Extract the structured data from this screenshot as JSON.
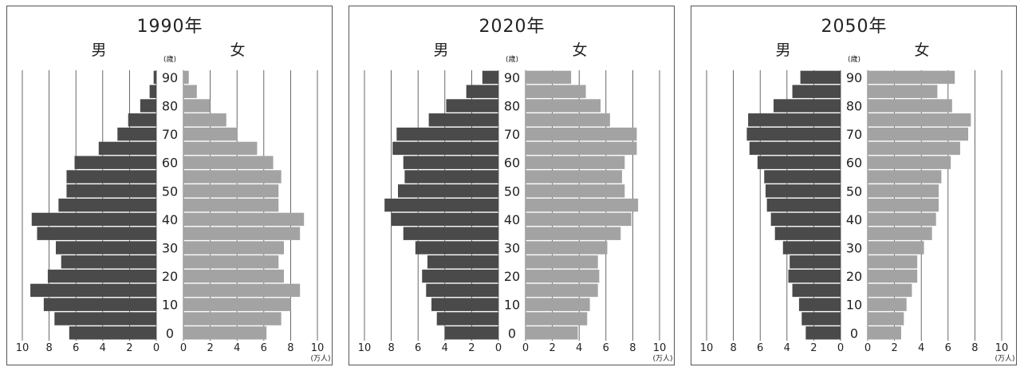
{
  "units": {
    "age": "(歳)",
    "population": "(万人)"
  },
  "labels": {
    "male": "男",
    "female": "女"
  },
  "age_ticks": [
    "90",
    "80",
    "70",
    "60",
    "50",
    "40",
    "30",
    "20",
    "10",
    "0"
  ],
  "x_ticks": [
    "10",
    "8",
    "6",
    "4",
    "2",
    "0",
    "0",
    "2",
    "4",
    "6",
    "8",
    "10"
  ],
  "colors": {
    "male": "#4a4a4a",
    "female": "#a3a3a3",
    "grid": "#444444"
  },
  "chart_data": [
    {
      "type": "bar",
      "title": "1990年",
      "xlabel": "(万人)",
      "ylabel": "(歳)",
      "xlim": [
        0,
        10
      ],
      "categories": [
        "0-4",
        "5-9",
        "10-14",
        "15-19",
        "20-24",
        "25-29",
        "30-34",
        "35-39",
        "40-44",
        "45-49",
        "50-54",
        "55-59",
        "60-64",
        "65-69",
        "70-74",
        "75-79",
        "80-84",
        "85-89",
        "90+"
      ],
      "series": [
        {
          "name": "男",
          "values": [
            6.5,
            7.6,
            8.4,
            9.4,
            8.1,
            7.1,
            7.5,
            8.9,
            9.3,
            7.3,
            6.7,
            6.7,
            6.1,
            4.3,
            2.9,
            2.1,
            1.2,
            0.5,
            0.2
          ]
        },
        {
          "name": "女",
          "values": [
            6.2,
            7.3,
            8.0,
            8.7,
            7.5,
            7.1,
            7.5,
            8.7,
            9.0,
            7.1,
            7.1,
            7.3,
            6.7,
            5.5,
            4.0,
            3.2,
            2.0,
            1.0,
            0.4
          ]
        }
      ]
    },
    {
      "type": "bar",
      "title": "2020年",
      "xlabel": "(万人)",
      "ylabel": "(歳)",
      "xlim": [
        0,
        10
      ],
      "categories": [
        "0-4",
        "5-9",
        "10-14",
        "15-19",
        "20-24",
        "25-29",
        "30-34",
        "35-39",
        "40-44",
        "45-49",
        "50-54",
        "55-59",
        "60-64",
        "65-69",
        "70-74",
        "75-79",
        "80-84",
        "85-89",
        "90+"
      ],
      "series": [
        {
          "name": "男",
          "values": [
            4.0,
            4.6,
            5.0,
            5.4,
            5.7,
            5.3,
            6.2,
            7.1,
            8.0,
            8.5,
            7.5,
            7.0,
            7.1,
            7.9,
            7.6,
            5.2,
            3.9,
            2.4,
            1.2
          ]
        },
        {
          "name": "女",
          "values": [
            3.9,
            4.6,
            4.8,
            5.4,
            5.5,
            5.4,
            6.1,
            7.1,
            7.9,
            8.4,
            7.4,
            7.2,
            7.4,
            8.3,
            8.3,
            6.3,
            5.6,
            4.5,
            3.4
          ]
        }
      ]
    },
    {
      "type": "bar",
      "title": "2050年",
      "xlabel": "(万人)",
      "ylabel": "(歳)",
      "xlim": [
        0,
        10
      ],
      "categories": [
        "0-4",
        "5-9",
        "10-14",
        "15-19",
        "20-24",
        "25-29",
        "30-34",
        "35-39",
        "40-44",
        "45-49",
        "50-54",
        "55-59",
        "60-64",
        "65-69",
        "70-74",
        "75-79",
        "80-84",
        "85-89",
        "90+"
      ],
      "series": [
        {
          "name": "男",
          "values": [
            2.6,
            2.9,
            3.1,
            3.6,
            3.9,
            3.8,
            4.3,
            4.9,
            5.2,
            5.5,
            5.6,
            5.7,
            6.2,
            6.8,
            7.0,
            6.9,
            5.0,
            3.6,
            3.0
          ]
        },
        {
          "name": "女",
          "values": [
            2.5,
            2.7,
            2.9,
            3.3,
            3.7,
            3.7,
            4.2,
            4.8,
            5.1,
            5.3,
            5.3,
            5.5,
            6.2,
            6.9,
            7.5,
            7.7,
            6.3,
            5.2,
            6.5
          ]
        }
      ]
    }
  ]
}
